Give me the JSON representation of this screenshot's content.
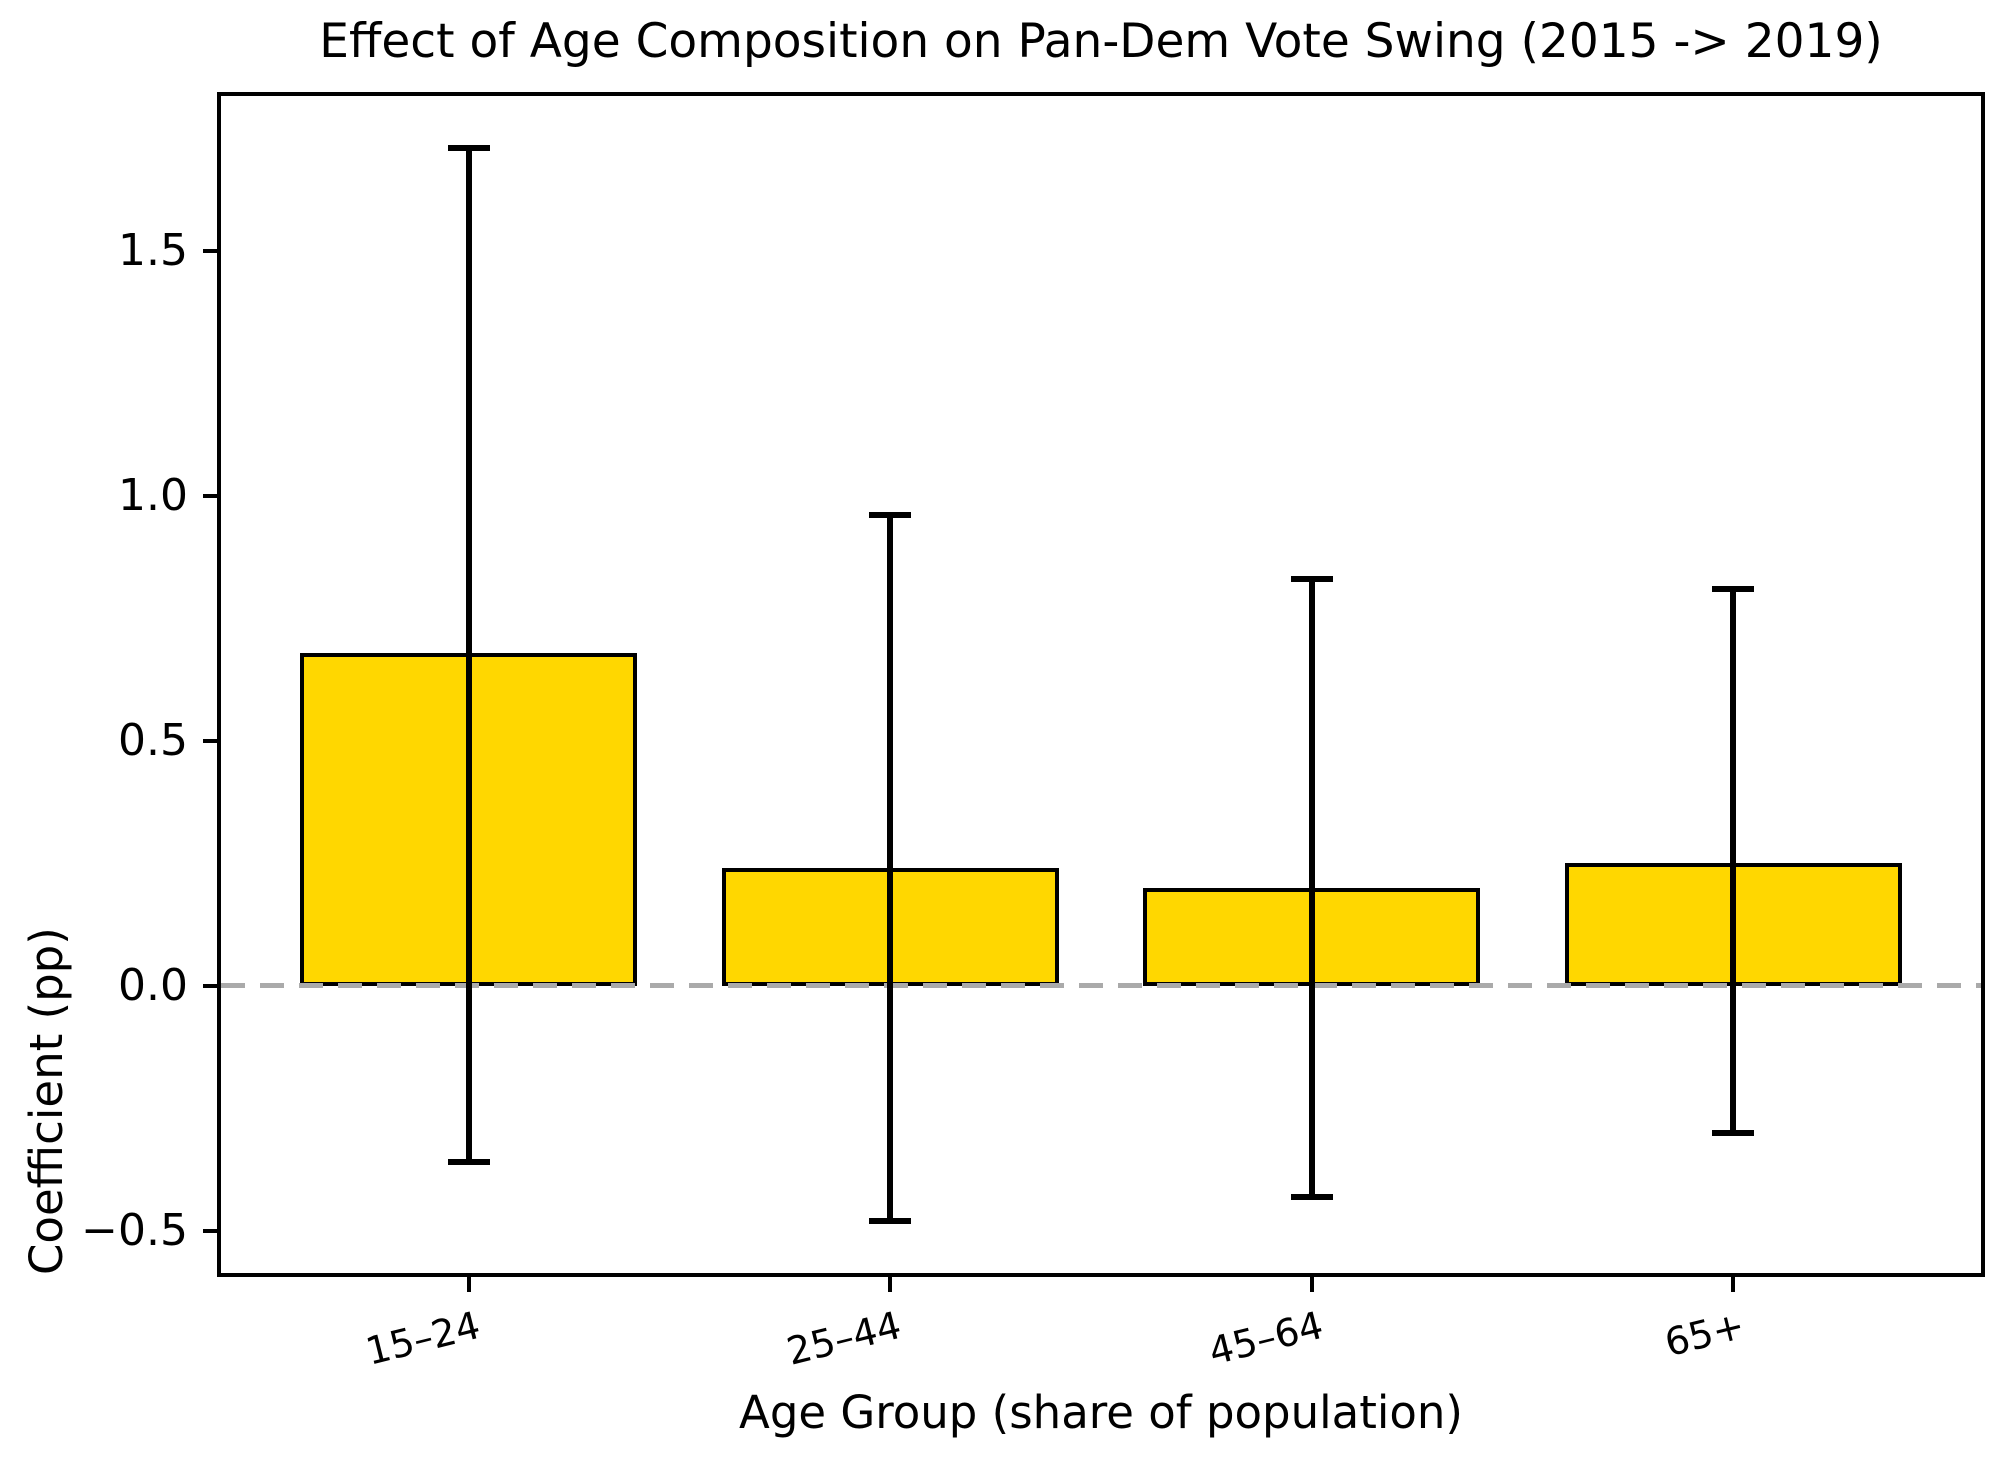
{
  "title": "Effect of Age Composition on Pan-Dem Vote Swing (2015 -> 2019)",
  "chart_data": {
    "type": "bar",
    "title": "Effect of Age Composition on Pan-Dem Vote Swing (2015 -> 2019)",
    "xlabel": "Age Group (share of population)",
    "ylabel": "Coefficient (pp)",
    "categories": [
      "15–24",
      "25–44",
      "45–64",
      "65+"
    ],
    "values": [
      0.68,
      0.24,
      0.2,
      0.25
    ],
    "error_low": [
      -0.36,
      -0.48,
      -0.43,
      -0.3
    ],
    "error_high": [
      1.71,
      0.96,
      0.83,
      0.81
    ],
    "yticks": [
      1.5,
      1.0,
      0.5,
      0.0,
      -0.5
    ],
    "ytick_labels": [
      "1.5",
      "1.0",
      "0.5",
      "0.0",
      "−0.5"
    ],
    "ylim": [
      -0.59,
      1.82
    ],
    "zero_line": 0,
    "grid": false,
    "legend": null,
    "bar_color": "#FFD700",
    "edge_color": "#000000",
    "error_color": "#000000",
    "zero_line_color": "#AAAAAA"
  }
}
